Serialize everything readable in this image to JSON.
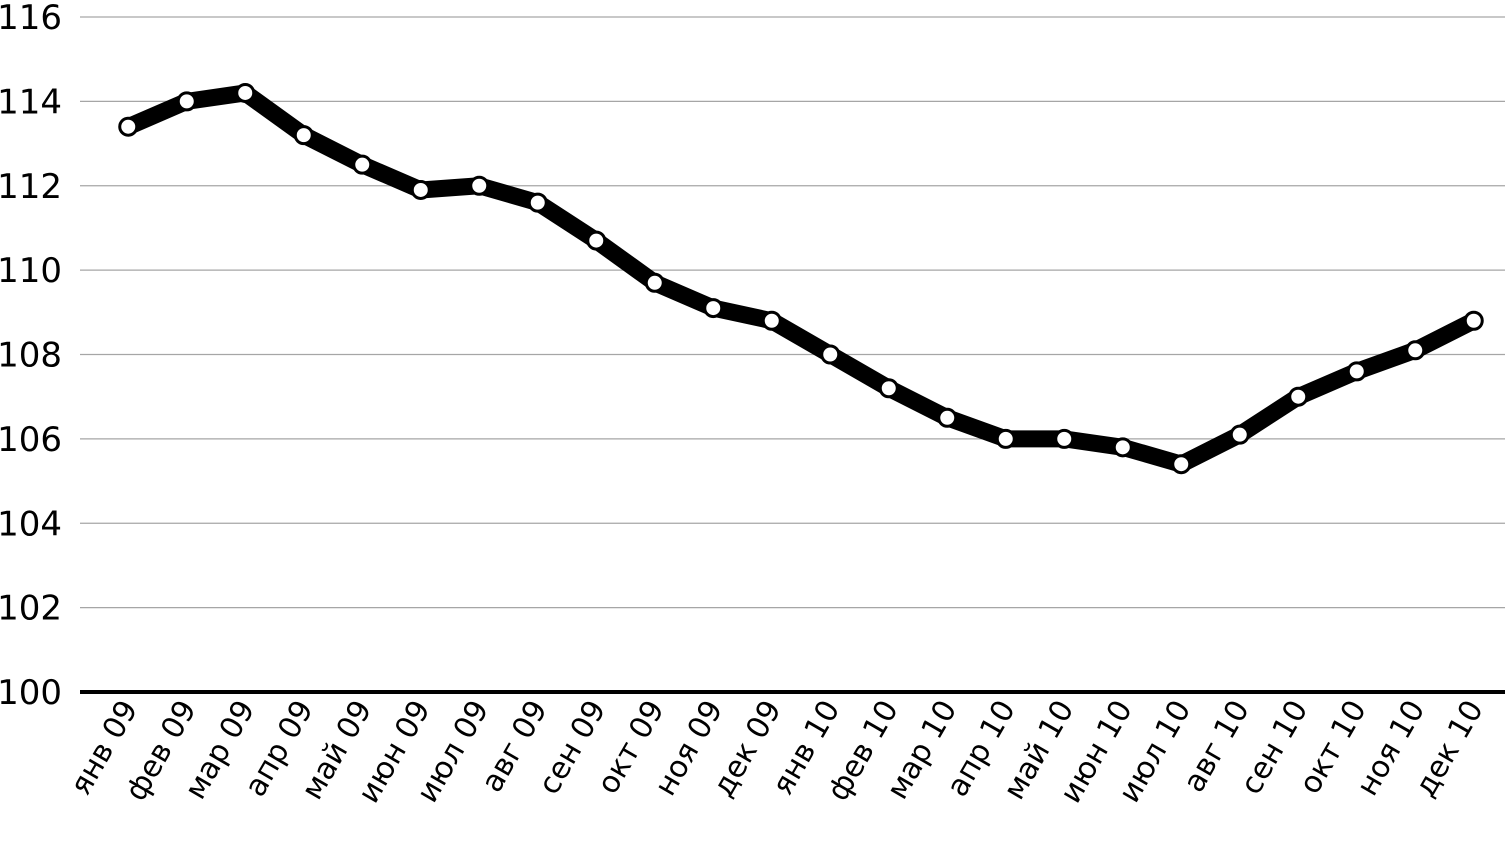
{
  "chart_data": {
    "type": "line",
    "title": "",
    "xlabel": "",
    "ylabel": "",
    "ylim": [
      100,
      116
    ],
    "yticks": [
      100,
      102,
      104,
      106,
      108,
      110,
      112,
      114,
      116
    ],
    "grid": true,
    "legend": "none",
    "categories": [
      "янв 09",
      "фев 09",
      "мар 09",
      "апр 09",
      "май 09",
      "июн 09",
      "июл 09",
      "авг 09",
      "сен 09",
      "окт 09",
      "ноя 09",
      "дек 09",
      "янв 10",
      "фев 10",
      "мар 10",
      "апр 10",
      "май 10",
      "июн 10",
      "июл 10",
      "авг 10",
      "сен 10",
      "окт 10",
      "ноя 10",
      "дек 10"
    ],
    "series": [
      {
        "values": [
          113.4,
          114.0,
          114.2,
          113.2,
          112.5,
          111.9,
          112.0,
          111.6,
          110.7,
          109.7,
          109.1,
          108.8,
          108.0,
          107.2,
          106.5,
          106.0,
          106.0,
          105.8,
          105.4,
          106.1,
          107.0,
          107.6,
          108.1,
          108.8
        ]
      }
    ],
    "colors": {
      "line": "#000000",
      "marker_fill": "#ffffff",
      "grid": "#a6a6a6"
    }
  }
}
